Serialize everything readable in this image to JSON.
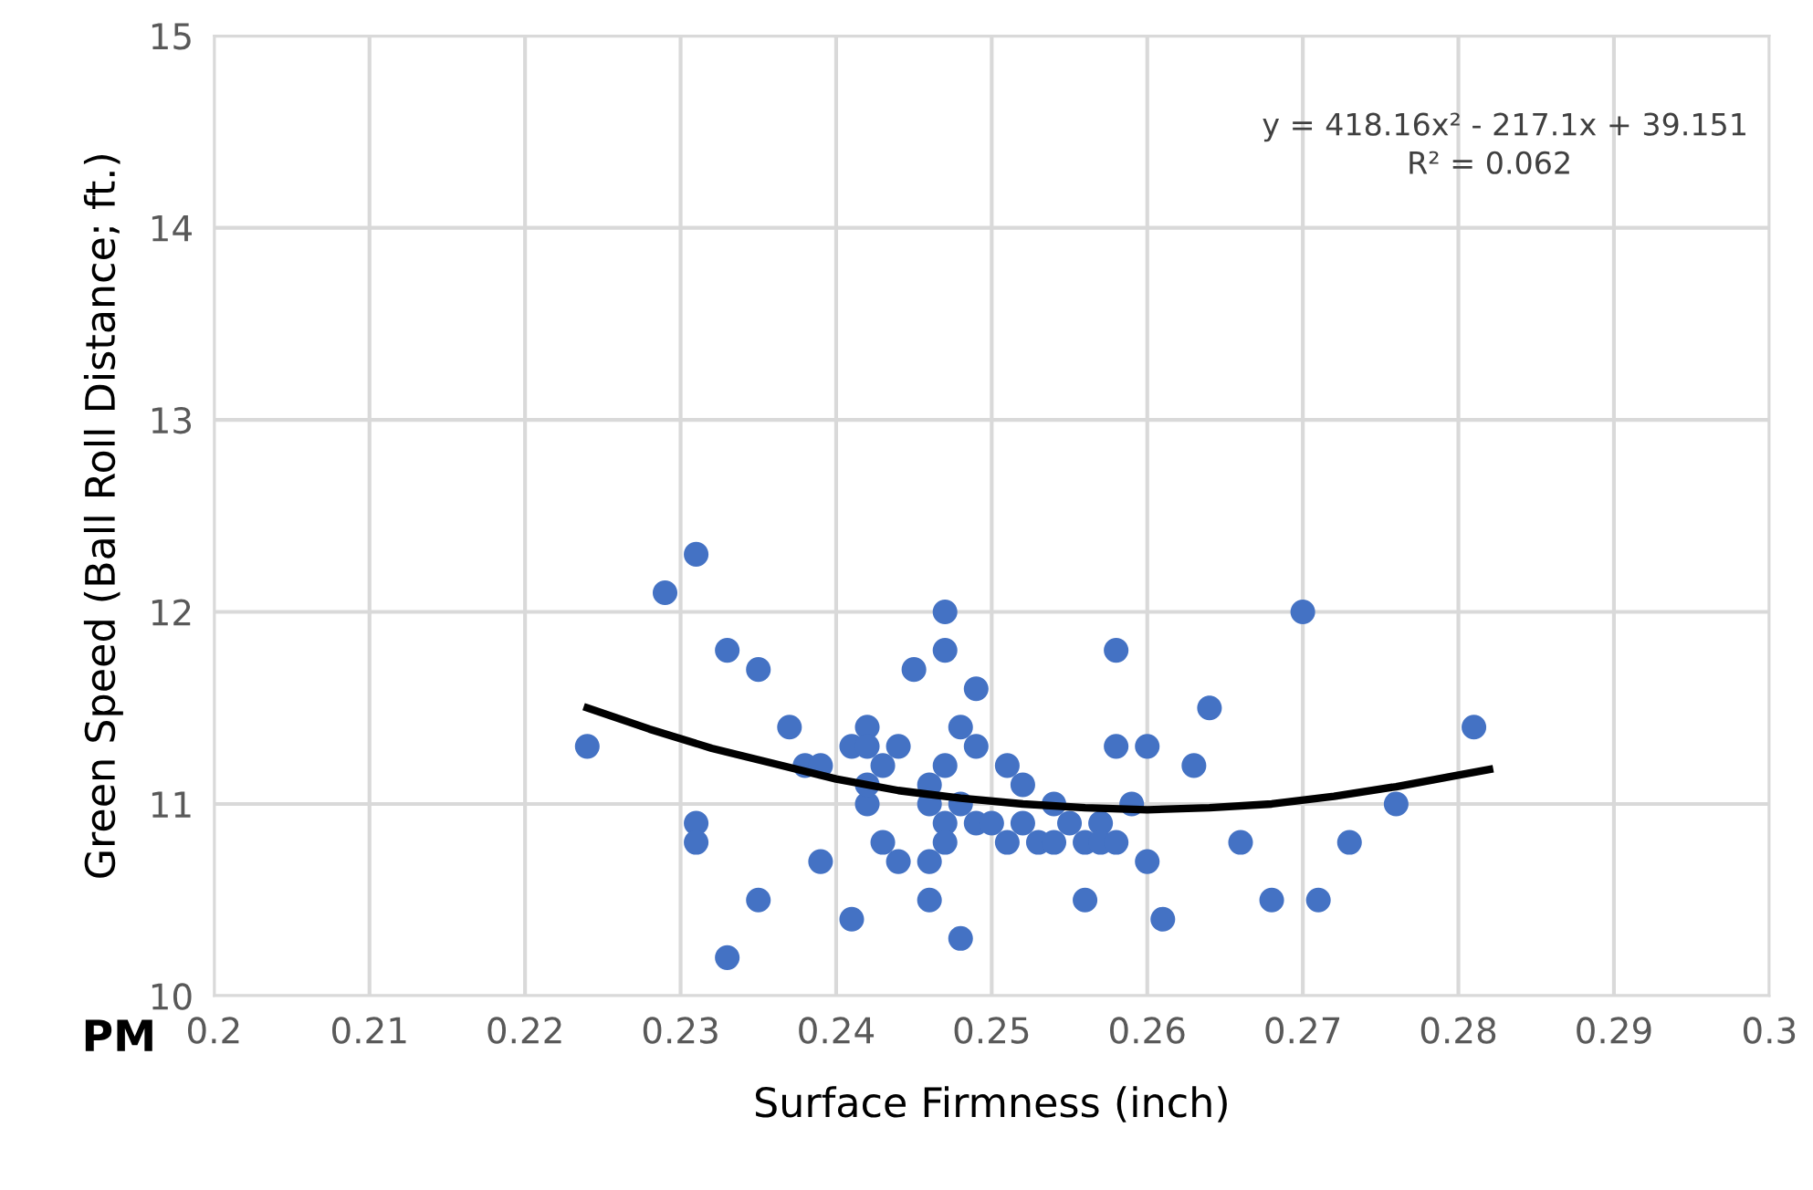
{
  "chart_data": {
    "type": "scatter",
    "xlabel": "Surface Firmness (inch)",
    "ylabel": "Green Speed (Ball Roll Distance; ft.)",
    "annotations": [
      "y = 418.16x² - 217.1x + 39.151",
      "R² = 0.062",
      "PM"
    ],
    "xlim": [
      0.2,
      0.3
    ],
    "xticks": [
      0.2,
      0.21,
      0.22,
      0.23,
      0.24,
      0.25,
      0.26,
      0.27,
      0.28,
      0.29,
      0.3
    ],
    "ylim": [
      10,
      15
    ],
    "yticks": [
      10,
      11,
      12,
      13,
      14,
      15
    ],
    "grid": true,
    "marker": "circle",
    "series": [
      {
        "color": "#4472c4",
        "x": [
          0.224,
          0.229,
          0.231,
          0.231,
          0.231,
          0.233,
          0.233,
          0.235,
          0.235,
          0.237,
          0.238,
          0.239,
          0.239,
          0.241,
          0.241,
          0.242,
          0.242,
          0.242,
          0.242,
          0.243,
          0.243,
          0.244,
          0.244,
          0.245,
          0.246,
          0.246,
          0.246,
          0.246,
          0.247,
          0.247,
          0.247,
          0.247,
          0.247,
          0.248,
          0.248,
          0.249,
          0.249,
          0.249,
          0.248,
          0.25,
          0.251,
          0.251,
          0.252,
          0.252,
          0.253,
          0.254,
          0.254,
          0.255,
          0.256,
          0.256,
          0.257,
          0.257,
          0.258,
          0.258,
          0.258,
          0.259,
          0.26,
          0.26,
          0.261,
          0.263,
          0.264,
          0.266,
          0.268,
          0.27,
          0.271,
          0.273,
          0.276,
          0.281
        ],
        "values": [
          11.3,
          12.1,
          12.3,
          10.9,
          10.8,
          11.8,
          10.2,
          11.7,
          10.5,
          11.4,
          11.2,
          10.7,
          11.2,
          11.3,
          10.4,
          11.4,
          11.3,
          11.0,
          11.1,
          11.2,
          10.8,
          11.3,
          10.7,
          11.7,
          11.1,
          10.7,
          10.5,
          11.0,
          12.0,
          11.8,
          11.2,
          10.9,
          10.8,
          11.4,
          10.3,
          11.6,
          11.3,
          10.9,
          11.0,
          10.9,
          11.2,
          10.8,
          11.1,
          10.9,
          10.8,
          10.8,
          11.0,
          10.9,
          10.5,
          10.8,
          10.9,
          10.8,
          11.8,
          11.3,
          10.8,
          11.0,
          11.3,
          10.7,
          10.4,
          11.2,
          11.5,
          10.8,
          10.5,
          12.0,
          10.5,
          10.8,
          11.0,
          11.4
        ]
      },
      {
        "type": "line",
        "color": "#000000",
        "marker": "none",
        "x": [
          0.224,
          0.228,
          0.232,
          0.236,
          0.24,
          0.244,
          0.248,
          0.252,
          0.256,
          0.26,
          0.264,
          0.268,
          0.272,
          0.276,
          0.28,
          0.282
        ],
        "values": [
          11.5,
          11.39,
          11.29,
          11.21,
          11.13,
          11.07,
          11.03,
          11.0,
          10.98,
          10.97,
          10.98,
          11.0,
          11.04,
          11.09,
          11.15,
          11.18
        ]
      }
    ]
  }
}
